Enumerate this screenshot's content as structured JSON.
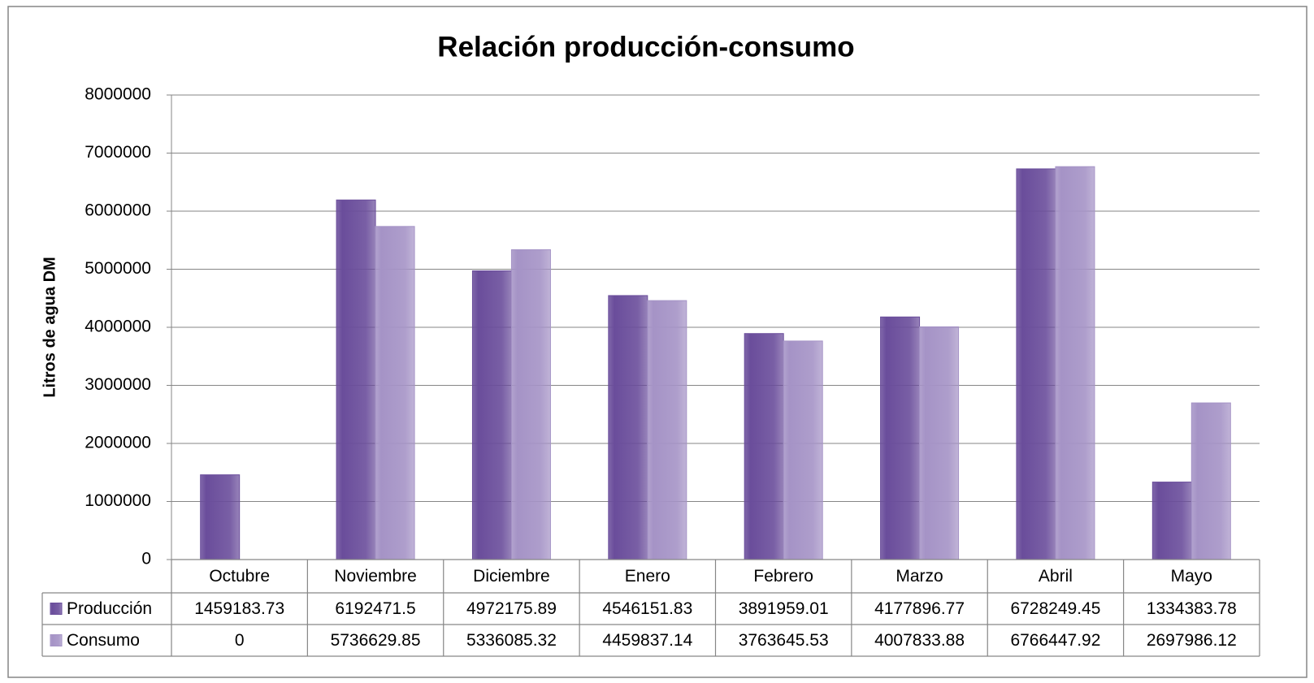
{
  "chart_data": {
    "type": "bar",
    "title": "Relación producción-consumo",
    "y_label": "Litros de agua DM",
    "categories": [
      "Octubre",
      "Noviembre",
      "Diciembre",
      "Enero",
      "Febrero",
      "Marzo",
      "Abril",
      "Mayo"
    ],
    "series": [
      {
        "name": "Producción",
        "color": "#6a4d9b",
        "values": [
          1459183.73,
          6192471.5,
          4972175.89,
          4546151.83,
          3891959.01,
          4177896.77,
          6728249.45,
          1334383.78
        ]
      },
      {
        "name": "Consumo",
        "color": "#a593c6",
        "values": [
          0,
          5736629.85,
          5336085.32,
          4459837.14,
          3763645.53,
          4007833.88,
          6766447.92,
          2697986.12
        ]
      }
    ],
    "ylim": [
      0,
      8000000
    ],
    "yticks": [
      0,
      1000000,
      2000000,
      3000000,
      4000000,
      5000000,
      6000000,
      7000000,
      8000000
    ],
    "grid": true,
    "data_table": true
  }
}
